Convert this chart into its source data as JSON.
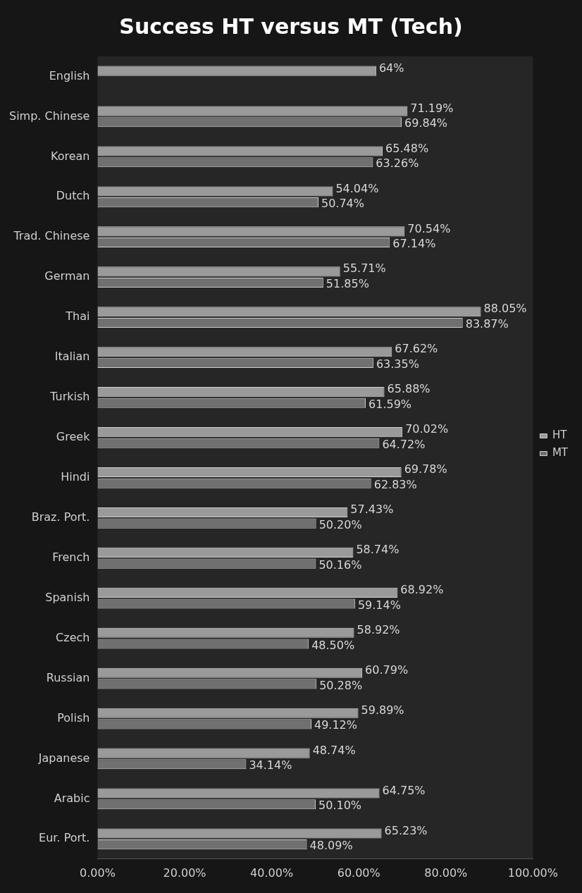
{
  "chart_data": {
    "type": "bar",
    "orientation": "horizontal",
    "title": "Success HT versus MT (Tech)",
    "categories": [
      "English",
      "Simp. Chinese",
      "Korean",
      "Dutch",
      "Trad. Chinese",
      "German",
      "Thai",
      "Italian",
      "Turkish",
      "Greek",
      "Hindi",
      "Braz. Port.",
      "French",
      "Spanish",
      "Czech",
      "Russian",
      "Polish",
      "Japanese",
      "Arabic",
      "Eur. Port."
    ],
    "series": [
      {
        "name": "HT",
        "color": "#9a9a9a",
        "values": [
          64,
          71.19,
          65.48,
          54.04,
          70.54,
          55.71,
          88.05,
          67.62,
          65.88,
          70.02,
          69.78,
          57.43,
          58.74,
          68.92,
          58.92,
          60.79,
          59.89,
          48.74,
          64.75,
          65.23
        ],
        "value_labels": [
          "64%",
          "71.19%",
          "65.48%",
          "54.04%",
          "70.54%",
          "55.71%",
          "88.05%",
          "67.62%",
          "65.88%",
          "70.02%",
          "69.78%",
          "57.43%",
          "58.74%",
          "68.92%",
          "58.92%",
          "60.79%",
          "59.89%",
          "48.74%",
          "64.75%",
          "65.23%"
        ]
      },
      {
        "name": "MT",
        "color": "#707070",
        "values": [
          null,
          69.84,
          63.26,
          50.74,
          67.14,
          51.85,
          83.87,
          63.35,
          61.59,
          64.72,
          62.83,
          50.2,
          50.16,
          59.14,
          48.5,
          50.28,
          49.12,
          34.14,
          50.1,
          48.09
        ],
        "value_labels": [
          null,
          "69.84%",
          "63.26%",
          "50.74%",
          "67.14%",
          "51.85%",
          "83.87%",
          "63.35%",
          "61.59%",
          "64.72%",
          "62.83%",
          "50.20%",
          "50.16%",
          "59.14%",
          "48.50%",
          "50.28%",
          "49.12%",
          "34.14%",
          "50.10%",
          "48.09%"
        ]
      }
    ],
    "xlim": [
      0,
      100
    ],
    "xticks": [
      {
        "value": 0,
        "label": "0.00%"
      },
      {
        "value": 20,
        "label": "20.00%"
      },
      {
        "value": 40,
        "label": "40.00%"
      },
      {
        "value": 60,
        "label": "60.00%"
      },
      {
        "value": 80,
        "label": "80.00%"
      },
      {
        "value": 100,
        "label": "100.00%"
      }
    ],
    "grid": false,
    "legend": "right"
  }
}
